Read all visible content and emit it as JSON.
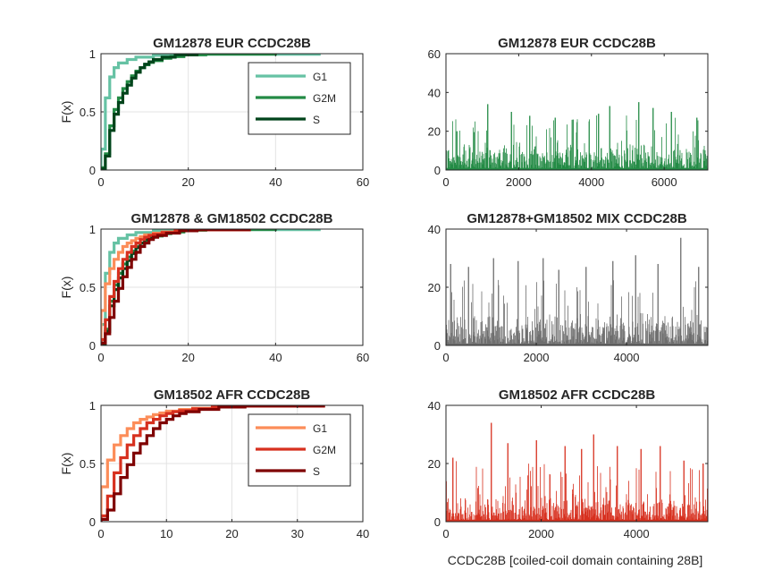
{
  "chart_data": [
    {
      "id": "cdf-eur",
      "type": "line",
      "subtype": "empirical-cdf",
      "title": "GM12878 EUR CCDC28B",
      "xlabel": "",
      "ylabel": "F(x)",
      "xlim": [
        0,
        60
      ],
      "ylim": [
        0,
        1
      ],
      "xticks": [
        0,
        20,
        40,
        60
      ],
      "yticks": [
        0,
        0.5,
        1
      ],
      "grid": true,
      "legend": {
        "placement": "top-right",
        "entries": [
          "G1",
          "G2M",
          "S"
        ]
      },
      "series": [
        {
          "name": "G1",
          "color": "#66c2a4",
          "max_x": 50,
          "steps": [
            [
              0,
              0.18
            ],
            [
              1,
              0.62
            ],
            [
              2,
              0.8
            ],
            [
              3,
              0.88
            ],
            [
              4,
              0.92
            ],
            [
              6,
              0.95
            ],
            [
              8,
              0.97
            ],
            [
              12,
              0.985
            ],
            [
              16,
              0.99
            ],
            [
              24,
              0.995
            ],
            [
              50,
              1.0
            ]
          ]
        },
        {
          "name": "G2M",
          "color": "#238b45",
          "max_x": 40,
          "steps": [
            [
              0,
              0.02
            ],
            [
              1,
              0.14
            ],
            [
              2,
              0.38
            ],
            [
              3,
              0.52
            ],
            [
              4,
              0.62
            ],
            [
              5,
              0.7
            ],
            [
              6,
              0.76
            ],
            [
              7,
              0.81
            ],
            [
              8,
              0.85
            ],
            [
              9,
              0.88
            ],
            [
              10,
              0.905
            ],
            [
              11,
              0.925
            ],
            [
              12,
              0.94
            ],
            [
              14,
              0.96
            ],
            [
              16,
              0.975
            ],
            [
              19,
              0.99
            ],
            [
              24,
              0.996
            ],
            [
              40,
              1.0
            ]
          ]
        },
        {
          "name": "S",
          "color": "#00441b",
          "max_x": 22,
          "steps": [
            [
              0,
              0.01
            ],
            [
              1,
              0.12
            ],
            [
              2,
              0.34
            ],
            [
              3,
              0.48
            ],
            [
              4,
              0.58
            ],
            [
              5,
              0.66
            ],
            [
              6,
              0.73
            ],
            [
              7,
              0.79
            ],
            [
              8,
              0.84
            ],
            [
              9,
              0.88
            ],
            [
              10,
              0.91
            ],
            [
              11,
              0.93
            ],
            [
              12,
              0.95
            ],
            [
              14,
              0.97
            ],
            [
              17,
              0.99
            ],
            [
              22,
              1.0
            ]
          ]
        }
      ]
    },
    {
      "id": "hist-eur",
      "type": "bar",
      "subtype": "per-index-counts",
      "title": "GM12878 EUR CCDC28B",
      "xlabel": "",
      "ylabel": "",
      "xlim": [
        0,
        7200
      ],
      "ylim": [
        0,
        60
      ],
      "xticks": [
        0,
        2000,
        4000,
        6000
      ],
      "yticks": [
        0,
        20,
        40,
        60
      ],
      "grid": false,
      "color": "#238b45",
      "n_points": 7200,
      "typical_max": 15,
      "peaks": [
        [
          0,
          49
        ],
        [
          300,
          20
        ],
        [
          1150,
          34
        ],
        [
          1800,
          30
        ],
        [
          2300,
          28
        ],
        [
          3000,
          27
        ],
        [
          3500,
          26
        ],
        [
          4200,
          29
        ],
        [
          4500,
          33
        ],
        [
          5300,
          35
        ],
        [
          5700,
          32
        ],
        [
          6200,
          30
        ],
        [
          6900,
          27
        ]
      ]
    },
    {
      "id": "cdf-mix",
      "type": "line",
      "subtype": "empirical-cdf",
      "title": "GM12878 & GM18502 CCDC28B",
      "xlabel": "",
      "ylabel": "F(x)",
      "xlim": [
        0,
        60
      ],
      "ylim": [
        0,
        1
      ],
      "xticks": [
        0,
        20,
        40,
        60
      ],
      "yticks": [
        0,
        0.5,
        1
      ],
      "grid": true,
      "legend": null,
      "series": [
        {
          "name": "",
          "color": "#66c2a4",
          "max_x": 50,
          "steps": [
            [
              0,
              0.18
            ],
            [
              1,
              0.62
            ],
            [
              2,
              0.8
            ],
            [
              3,
              0.88
            ],
            [
              4,
              0.92
            ],
            [
              6,
              0.95
            ],
            [
              8,
              0.97
            ],
            [
              12,
              0.985
            ],
            [
              16,
              0.99
            ],
            [
              24,
              0.995
            ],
            [
              50,
              1.0
            ]
          ]
        },
        {
          "name": "",
          "color": "#238b45",
          "max_x": 40,
          "steps": [
            [
              0,
              0.02
            ],
            [
              1,
              0.14
            ],
            [
              2,
              0.38
            ],
            [
              3,
              0.52
            ],
            [
              4,
              0.62
            ],
            [
              5,
              0.7
            ],
            [
              6,
              0.76
            ],
            [
              7,
              0.81
            ],
            [
              8,
              0.85
            ],
            [
              9,
              0.88
            ],
            [
              10,
              0.905
            ],
            [
              11,
              0.925
            ],
            [
              12,
              0.94
            ],
            [
              14,
              0.96
            ],
            [
              16,
              0.975
            ],
            [
              19,
              0.99
            ],
            [
              24,
              0.996
            ],
            [
              40,
              1.0
            ]
          ]
        },
        {
          "name": "",
          "color": "#00441b",
          "max_x": 22,
          "steps": [
            [
              0,
              0.01
            ],
            [
              1,
              0.12
            ],
            [
              2,
              0.34
            ],
            [
              3,
              0.48
            ],
            [
              4,
              0.58
            ],
            [
              5,
              0.66
            ],
            [
              6,
              0.73
            ],
            [
              7,
              0.79
            ],
            [
              8,
              0.84
            ],
            [
              9,
              0.88
            ],
            [
              10,
              0.91
            ],
            [
              11,
              0.93
            ],
            [
              12,
              0.95
            ],
            [
              14,
              0.97
            ],
            [
              17,
              0.99
            ],
            [
              22,
              1.0
            ]
          ]
        },
        {
          "name": "",
          "color": "#fc8d59",
          "max_x": 30,
          "steps": [
            [
              0,
              0.3
            ],
            [
              1,
              0.53
            ],
            [
              2,
              0.66
            ],
            [
              3,
              0.74
            ],
            [
              4,
              0.8
            ],
            [
              5,
              0.85
            ],
            [
              6,
              0.88
            ],
            [
              7,
              0.9
            ],
            [
              8,
              0.92
            ],
            [
              9,
              0.935
            ],
            [
              10,
              0.95
            ],
            [
              12,
              0.965
            ],
            [
              14,
              0.975
            ],
            [
              17,
              0.985
            ],
            [
              21,
              0.993
            ],
            [
              30,
              1.0
            ]
          ]
        },
        {
          "name": "",
          "color": "#d7301f",
          "max_x": 34,
          "steps": [
            [
              0,
              0.05
            ],
            [
              1,
              0.22
            ],
            [
              2,
              0.42
            ],
            [
              3,
              0.55
            ],
            [
              4,
              0.66
            ],
            [
              5,
              0.74
            ],
            [
              6,
              0.8
            ],
            [
              7,
              0.85
            ],
            [
              8,
              0.88
            ],
            [
              9,
              0.91
            ],
            [
              10,
              0.93
            ],
            [
              11,
              0.945
            ],
            [
              12,
              0.955
            ],
            [
              14,
              0.97
            ],
            [
              17,
              0.985
            ],
            [
              21,
              0.993
            ],
            [
              34,
              1.0
            ]
          ]
        },
        {
          "name": "",
          "color": "#7f0000",
          "max_x": 34,
          "steps": [
            [
              0,
              0.02
            ],
            [
              1,
              0.1
            ],
            [
              2,
              0.24
            ],
            [
              3,
              0.38
            ],
            [
              4,
              0.49
            ],
            [
              5,
              0.59
            ],
            [
              6,
              0.67
            ],
            [
              7,
              0.74
            ],
            [
              8,
              0.8
            ],
            [
              9,
              0.85
            ],
            [
              10,
              0.88
            ],
            [
              11,
              0.91
            ],
            [
              12,
              0.93
            ],
            [
              13,
              0.945
            ],
            [
              15,
              0.965
            ],
            [
              18,
              0.985
            ],
            [
              22,
              0.995
            ],
            [
              34,
              1.0
            ]
          ]
        }
      ]
    },
    {
      "id": "hist-mix",
      "type": "bar",
      "subtype": "per-index-counts",
      "title": "GM12878+GM18502 MIX CCDC28B",
      "xlabel": "",
      "ylabel": "",
      "xlim": [
        0,
        5800
      ],
      "ylim": [
        0,
        40
      ],
      "xticks": [
        0,
        2000,
        4000
      ],
      "yticks": [
        0,
        20,
        40
      ],
      "grid": false,
      "color": "#6e6e6e",
      "n_points": 5800,
      "typical_max": 12,
      "peaks": [
        [
          100,
          28
        ],
        [
          500,
          27
        ],
        [
          1050,
          30
        ],
        [
          1600,
          29
        ],
        [
          2150,
          30
        ],
        [
          2500,
          26
        ],
        [
          3100,
          27
        ],
        [
          3700,
          29
        ],
        [
          4200,
          31
        ],
        [
          4700,
          28
        ],
        [
          5200,
          37
        ],
        [
          5600,
          27
        ]
      ]
    },
    {
      "id": "cdf-afr",
      "type": "line",
      "subtype": "empirical-cdf",
      "title": "GM18502 AFR CCDC28B",
      "xlabel": "",
      "ylabel": "F(x)",
      "xlim": [
        0,
        40
      ],
      "ylim": [
        0,
        1
      ],
      "xticks": [
        0,
        10,
        20,
        30,
        40
      ],
      "yticks": [
        0,
        0.5,
        1
      ],
      "grid": true,
      "legend": {
        "placement": "top-right",
        "entries": [
          "G1",
          "G2M",
          "S"
        ]
      },
      "series": [
        {
          "name": "G1",
          "color": "#fc8d59",
          "max_x": 30,
          "steps": [
            [
              0,
              0.3
            ],
            [
              1,
              0.53
            ],
            [
              2,
              0.66
            ],
            [
              3,
              0.74
            ],
            [
              4,
              0.8
            ],
            [
              5,
              0.85
            ],
            [
              6,
              0.88
            ],
            [
              7,
              0.9
            ],
            [
              8,
              0.92
            ],
            [
              9,
              0.935
            ],
            [
              10,
              0.95
            ],
            [
              12,
              0.965
            ],
            [
              14,
              0.975
            ],
            [
              17,
              0.985
            ],
            [
              21,
              0.993
            ],
            [
              30,
              1.0
            ]
          ]
        },
        {
          "name": "G2M",
          "color": "#d7301f",
          "max_x": 34,
          "steps": [
            [
              0,
              0.05
            ],
            [
              1,
              0.22
            ],
            [
              2,
              0.42
            ],
            [
              3,
              0.55
            ],
            [
              4,
              0.66
            ],
            [
              5,
              0.74
            ],
            [
              6,
              0.8
            ],
            [
              7,
              0.85
            ],
            [
              8,
              0.88
            ],
            [
              9,
              0.91
            ],
            [
              10,
              0.93
            ],
            [
              11,
              0.945
            ],
            [
              12,
              0.955
            ],
            [
              14,
              0.97
            ],
            [
              17,
              0.985
            ],
            [
              21,
              0.993
            ],
            [
              34,
              1.0
            ]
          ]
        },
        {
          "name": "S",
          "color": "#7f0000",
          "max_x": 34,
          "steps": [
            [
              0,
              0.02
            ],
            [
              1,
              0.1
            ],
            [
              2,
              0.24
            ],
            [
              3,
              0.38
            ],
            [
              4,
              0.49
            ],
            [
              5,
              0.59
            ],
            [
              6,
              0.67
            ],
            [
              7,
              0.74
            ],
            [
              8,
              0.8
            ],
            [
              9,
              0.85
            ],
            [
              10,
              0.88
            ],
            [
              11,
              0.91
            ],
            [
              12,
              0.93
            ],
            [
              13,
              0.945
            ],
            [
              15,
              0.965
            ],
            [
              18,
              0.985
            ],
            [
              22,
              0.995
            ],
            [
              34,
              1.0
            ]
          ]
        }
      ]
    },
    {
      "id": "hist-afr",
      "type": "bar",
      "subtype": "per-index-counts",
      "title": "GM18502 AFR CCDC28B",
      "xlabel": "CCDC28B [coiled-coil domain containing 28B]",
      "ylabel": "",
      "xlim": [
        0,
        5500
      ],
      "ylim": [
        0,
        40
      ],
      "xticks": [
        0,
        2000,
        4000
      ],
      "yticks": [
        0,
        20,
        40
      ],
      "grid": false,
      "color": "#d7301f",
      "n_points": 5500,
      "typical_max": 11,
      "peaks": [
        [
          150,
          22
        ],
        [
          950,
          34
        ],
        [
          1300,
          27
        ],
        [
          1900,
          28
        ],
        [
          2500,
          26
        ],
        [
          2850,
          25
        ],
        [
          3100,
          30
        ],
        [
          3600,
          26
        ],
        [
          4100,
          25
        ],
        [
          4500,
          26
        ],
        [
          5000,
          21
        ],
        [
          5400,
          20
        ]
      ]
    }
  ]
}
